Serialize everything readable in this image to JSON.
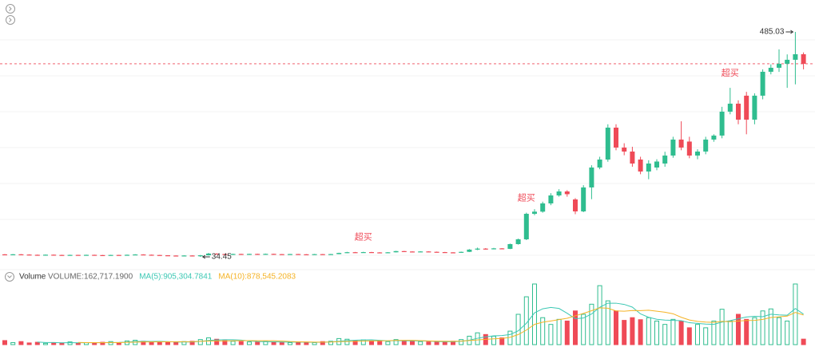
{
  "chart_data": [
    {
      "type": "candlestick",
      "up_color": "#2fbd8f",
      "down_color": "#ef4a57",
      "last_price_line": true,
      "open": [
        39.5,
        39.0,
        39.6,
        39.1,
        38.6,
        38.2,
        38.8,
        38.3,
        37.9,
        38.4,
        37.8,
        38.5,
        38.0,
        37.6,
        38.3,
        37.9,
        38.6,
        39.3,
        38.7,
        38.2,
        37.6,
        37.1,
        36.6,
        37.2,
        36.5,
        37.6,
        41.0,
        40.2,
        39.5,
        40.3,
        39.7,
        40.4,
        39.8,
        40.5,
        39.9,
        39.4,
        40.1,
        39.6,
        39.2,
        39.9,
        39.4,
        40.0,
        42.3,
        43.8,
        43.2,
        44.0,
        43.4,
        42.8,
        43.6,
        46.0,
        45.2,
        44.7,
        45.3,
        44.6,
        44.0,
        43.5,
        42.9,
        44.5,
        49.0,
        51.0,
        50.0,
        51.5,
        50.5,
        60.0,
        69.6,
        120.7,
        125.0,
        141.5,
        157.5,
        165.5,
        149.5,
        125.5,
        173.5,
        213.4,
        229.4,
        293.3,
        253.4,
        245.4,
        229.4,
        205.4,
        213.4,
        221.4,
        237.4,
        269.4,
        265.4,
        237.4,
        245.4,
        269.4,
        277.4,
        325.3,
        341.3,
        357.3,
        309.3,
        357.3,
        405.2,
        413.2,
        421.2,
        429.2,
        440.3
      ],
      "high": [
        40.0,
        40.1,
        40.0,
        39.5,
        39.0,
        39.2,
        39.1,
        38.7,
        38.8,
        38.6,
        38.9,
        38.8,
        38.3,
        38.6,
        38.6,
        39.0,
        39.8,
        39.6,
        39.0,
        38.5,
        37.9,
        37.4,
        37.5,
        37.5,
        38.2,
        42.5,
        41.6,
        40.6,
        40.8,
        40.7,
        40.9,
        40.8,
        41.0,
        40.8,
        40.2,
        40.5,
        40.4,
        39.9,
        40.3,
        40.2,
        40.4,
        42.8,
        44.5,
        44.3,
        44.6,
        44.4,
        43.8,
        44.0,
        46.5,
        46.4,
        45.6,
        45.8,
        45.6,
        45.0,
        44.4,
        43.8,
        45.0,
        50.0,
        53.0,
        52.0,
        52.5,
        52.0,
        61.0,
        71.0,
        123.0,
        130.0,
        145.0,
        162.0,
        170.0,
        168.0,
        152.0,
        178.0,
        218.0,
        235.0,
        300.0,
        300.0,
        262.0,
        255.0,
        235.0,
        228.0,
        230.0,
        245.0,
        275.0,
        306.0,
        275.0,
        250.0,
        275.0,
        280.0,
        335.0,
        373.0,
        348.0,
        365.0,
        362.0,
        410.0,
        420.0,
        450.0,
        440.0,
        485.03,
        444.0
      ],
      "low": [
        38.6,
        38.7,
        38.8,
        38.2,
        37.9,
        37.8,
        38.0,
        37.5,
        37.6,
        37.4,
        37.5,
        37.7,
        37.2,
        37.3,
        37.6,
        37.6,
        38.3,
        38.4,
        37.9,
        37.3,
        36.7,
        36.2,
        36.1,
        35.6,
        34.45,
        37.3,
        39.6,
        39.1,
        39.2,
        39.3,
        39.4,
        39.4,
        39.5,
        39.5,
        39.0,
        39.1,
        39.2,
        38.8,
        38.9,
        39.0,
        39.1,
        39.8,
        42.0,
        42.8,
        42.9,
        43.0,
        42.4,
        42.5,
        43.3,
        44.8,
        44.3,
        44.4,
        44.2,
        43.6,
        43.1,
        42.5,
        42.6,
        44.2,
        48.0,
        49.2,
        49.5,
        49.8,
        50.0,
        59.0,
        68.0,
        118.0,
        123.0,
        138.0,
        155.0,
        155.0,
        120.0,
        124.0,
        150.0,
        210.0,
        225.0,
        248.0,
        238.0,
        215.0,
        200.0,
        190.0,
        208.0,
        215.0,
        233.0,
        248.0,
        232.0,
        230.0,
        240.0,
        265.0,
        272.0,
        320.0,
        300.0,
        280.0,
        300.0,
        350.0,
        400.0,
        405.0,
        373.0,
        380.0,
        410.0
      ],
      "close": [
        39.0,
        39.6,
        39.1,
        38.6,
        38.2,
        38.8,
        38.3,
        37.9,
        38.4,
        37.8,
        38.5,
        38.0,
        37.6,
        38.3,
        37.9,
        38.6,
        39.3,
        38.7,
        38.2,
        37.6,
        37.1,
        36.6,
        37.2,
        36.5,
        37.6,
        41.0,
        40.2,
        39.5,
        40.3,
        39.7,
        40.4,
        39.8,
        40.5,
        39.9,
        39.4,
        40.1,
        39.6,
        39.2,
        39.9,
        39.4,
        40.0,
        42.3,
        43.8,
        43.2,
        44.0,
        43.4,
        42.8,
        43.6,
        46.0,
        45.2,
        44.7,
        45.3,
        44.6,
        44.0,
        43.5,
        42.9,
        44.5,
        49.0,
        51.0,
        50.0,
        51.5,
        50.5,
        60.0,
        69.6,
        120.7,
        125.0,
        141.5,
        157.5,
        165.5,
        160.0,
        125.5,
        173.5,
        213.4,
        229.4,
        293.3,
        253.4,
        245.4,
        221.4,
        205.4,
        221.4,
        225.4,
        237.4,
        269.4,
        253.4,
        237.4,
        245.4,
        269.4,
        277.4,
        325.3,
        341.3,
        309.3,
        309.3,
        357.3,
        405.2,
        413.2,
        421.2,
        429.2,
        440.3,
        421.2
      ],
      "annotations": [
        {
          "text": "超买",
          "index": 44
        },
        {
          "text": "超买",
          "index": 64
        },
        {
          "text": "超买",
          "index": 89
        }
      ]
    },
    {
      "type": "volume",
      "title": "Volume",
      "legend": [
        {
          "text": "VOLUME:162,717.1900",
          "color": "#666666"
        },
        {
          "text": "MA(5):905,304.7841",
          "color": "#3cc8b4"
        },
        {
          "text": "MA(10):878,545.2083",
          "color": "#f5b325"
        }
      ],
      "values": [
        120000,
        60000,
        90000,
        50000,
        70000,
        40000,
        60000,
        50000,
        80000,
        40000,
        60000,
        50000,
        70000,
        90000,
        60000,
        110000,
        130000,
        100000,
        80000,
        70000,
        60000,
        80000,
        90000,
        100000,
        150000,
        200000,
        160000,
        120000,
        100000,
        90000,
        80000,
        70000,
        90000,
        80000,
        70000,
        60000,
        80000,
        70000,
        60000,
        90000,
        100000,
        180000,
        160000,
        120000,
        140000,
        110000,
        100000,
        90000,
        150000,
        120000,
        100000,
        90000,
        80000,
        70000,
        90000,
        100000,
        150000,
        250000,
        350000,
        300000,
        250000,
        200000,
        400000,
        900000,
        1420000,
        1800000,
        800000,
        600000,
        750000,
        700000,
        1000000,
        900000,
        1200000,
        1750000,
        1300000,
        1000000,
        720000,
        800000,
        740000,
        800000,
        700000,
        600000,
        750000,
        700000,
        500000,
        600000,
        500000,
        700000,
        1050000,
        700000,
        900000,
        750000,
        800000,
        1000000,
        1060000,
        800000,
        700000,
        1800000,
        162717.19
      ],
      "series": [
        {
          "color": "#3cc8b4",
          "values": [
            null,
            null,
            null,
            null,
            78000,
            62000,
            62000,
            54000,
            60000,
            54000,
            58000,
            56000,
            60000,
            62000,
            66000,
            76000,
            92000,
            98000,
            96000,
            98000,
            88000,
            78000,
            76000,
            80000,
            96000,
            124000,
            140000,
            146000,
            146000,
            134000,
            110000,
            92000,
            86000,
            82000,
            78000,
            74000,
            76000,
            72000,
            68000,
            72000,
            80000,
            100000,
            118000,
            130000,
            140000,
            142000,
            126000,
            112000,
            118000,
            114000,
            112000,
            110000,
            108000,
            92000,
            86000,
            86000,
            98000,
            132000,
            188000,
            230000,
            260000,
            270000,
            300000,
            410000,
            634000,
            944000,
            1064000,
            1104000,
            1074000,
            930000,
            770000,
            790000,
            910000,
            1110000,
            1230000,
            1230000,
            1194000,
            1114000,
            912000,
            812000,
            752000,
            728000,
            718000,
            710000,
            650000,
            630000,
            610000,
            600000,
            670000,
            710000,
            770000,
            820000,
            840000,
            830000,
            902000,
            882000,
            872000,
            1072000,
            905304.7841
          ]
        },
        {
          "color": "#f5b325",
          "values": [
            null,
            null,
            null,
            null,
            null,
            null,
            null,
            null,
            null,
            66000,
            60000,
            59000,
            57000,
            61000,
            60000,
            67000,
            74000,
            79000,
            79000,
            82000,
            82000,
            85000,
            87000,
            88000,
            97000,
            106000,
            109000,
            111000,
            113000,
            115000,
            117000,
            116000,
            116000,
            114000,
            106000,
            92000,
            84000,
            79000,
            75000,
            75000,
            77000,
            88000,
            95000,
            99000,
            106000,
            111000,
            113000,
            115000,
            124000,
            127000,
            127000,
            118000,
            110000,
            105000,
            100000,
            99000,
            104000,
            120000,
            140000,
            158000,
            173000,
            184000,
            216000,
            299000,
            432000,
            602000,
            667000,
            702000,
            742000,
            782000,
            857000,
            927000,
            1007000,
            1092000,
            1080000,
            1000000,
            992000,
            1012000,
            1011000,
            1021000,
            991000,
            961000,
            916000,
            811000,
            731000,
            691000,
            669000,
            659000,
            690000,
            680000,
            700000,
            715000,
            720000,
            750000,
            806000,
            826000,
            846000,
            956000,
            878545.2083
          ]
        }
      ]
    }
  ]
}
